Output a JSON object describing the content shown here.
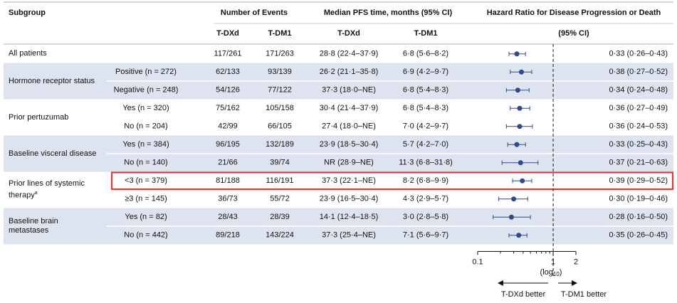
{
  "chart_data": {
    "type": "forest",
    "headers": {
      "subgroup": "Subgroup",
      "events": "Number of Events",
      "pfs": "Median PFS time, months (95% CI)",
      "hr": "Hazard Ratio for Disease Progression or Death",
      "hr_sub": "(95% CI)",
      "arms": [
        "T-DXd",
        "T-DM1"
      ]
    },
    "groups": [
      {
        "label": "All patients",
        "rows": [
          {
            "cells": [
              "117/261",
              "171/263",
              "28·8 (22·4–37·9)",
              "6·8 (5·6–8·2)"
            ],
            "hr": 0.33,
            "ci": [
              0.26,
              0.43
            ],
            "hr_label": "0·33 (0·26–0·43)"
          }
        ]
      },
      {
        "label": "Hormone receptor status",
        "rows": [
          {
            "subgroup": "Positive (n = 272)",
            "cells": [
              "62/133",
              "93/139",
              "26·2 (21·1–35·8)",
              "6·9 (4·2–9·7)"
            ],
            "hr": 0.38,
            "ci": [
              0.27,
              0.52
            ],
            "hr_label": "0·38 (0·27–0·52)"
          },
          {
            "subgroup": "Negative (n = 248)",
            "cells": [
              "54/126",
              "77/122",
              "37·3 (18·0–NE)",
              "6·8 (5·4–8·3)"
            ],
            "hr": 0.34,
            "ci": [
              0.24,
              0.48
            ],
            "hr_label": "0·34 (0·24–0·48)"
          }
        ]
      },
      {
        "label": "Prior pertuzumab",
        "rows": [
          {
            "subgroup": "Yes (n = 320)",
            "cells": [
              "75/162",
              "105/158",
              "30·4 (21·4–37·9)",
              "6·8 (5·4–8·3)"
            ],
            "hr": 0.36,
            "ci": [
              0.27,
              0.49
            ],
            "hr_label": "0·36 (0·27–0·49)"
          },
          {
            "subgroup": "No (n = 204)",
            "cells": [
              "42/99",
              "66/105",
              "27·4 (18·0–NE)",
              "7·0 (4·2–9·7)"
            ],
            "hr": 0.36,
            "ci": [
              0.24,
              0.53
            ],
            "hr_label": "0·36 (0·24–0·53)"
          }
        ]
      },
      {
        "label": "Baseline visceral disease",
        "rows": [
          {
            "subgroup": "Yes (n = 384)",
            "cells": [
              "96/195",
              "132/189",
              "23·9 (18·5–30·4)",
              "5·7 (4·2–7·0)"
            ],
            "hr": 0.33,
            "ci": [
              0.25,
              0.43
            ],
            "hr_label": "0·33 (0·25–0·43)"
          },
          {
            "subgroup": "No (n = 140)",
            "cells": [
              "21/66",
              "39/74",
              "NR (28·9–NE)",
              "11·3 (6·8–31·8)"
            ],
            "hr": 0.37,
            "ci": [
              0.21,
              0.63
            ],
            "hr_label": "0·37 (0·21–0·63)"
          }
        ]
      },
      {
        "label": "Prior lines of systemic therapy",
        "note": "a",
        "rows": [
          {
            "subgroup": "<3 (n = 379)",
            "cells": [
              "81/188",
              "116/191",
              "37·3 (22·1–NE)",
              "8·2 (6·8–9·9)"
            ],
            "hr": 0.39,
            "ci": [
              0.29,
              0.52
            ],
            "hr_label": "0·39 (0·29–0·52)"
          },
          {
            "subgroup": "≥3 (n = 145)",
            "cells": [
              "36/73",
              "55/72",
              "23·9 (16·5–30·4)",
              "4·3 (2·9–5·7)"
            ],
            "hr": 0.3,
            "ci": [
              0.19,
              0.46
            ],
            "hr_label": "0·30 (0·19–0·46)"
          }
        ]
      },
      {
        "label": "Baseline brain metastases",
        "rows": [
          {
            "subgroup": "Yes (n = 82)",
            "cells": [
              "28/43",
              "28/39",
              "14·1 (12·4–18·5)",
              "3·0 (2·8–5·8)"
            ],
            "hr": 0.28,
            "ci": [
              0.16,
              0.5
            ],
            "hr_label": "0·28 (0·16–0·50)"
          },
          {
            "subgroup": "No (n = 442)",
            "cells": [
              "89/218",
              "143/224",
              "37·3 (25·4–NE)",
              "7·1 (5·6–9·7)"
            ],
            "hr": 0.35,
            "ci": [
              0.26,
              0.45
            ],
            "hr_label": "0·35 (0·26–0·45)"
          }
        ]
      }
    ],
    "xscale": "log",
    "xlim": [
      0.1,
      2
    ],
    "xticks": [
      0.1,
      1,
      2
    ],
    "xminor": [
      0.2,
      0.3,
      0.4,
      0.5,
      0.6,
      0.7,
      0.8,
      0.9
    ],
    "reference": 1,
    "xlabel": "(log",
    "xlabel_sub": "10",
    "xlabel_end": ")",
    "left_label": "T-DXd better",
    "right_label": "T-DM1 better",
    "color": "#2f4a8a",
    "band_color": "#dde4ef",
    "highlight_color": "#e53935"
  }
}
